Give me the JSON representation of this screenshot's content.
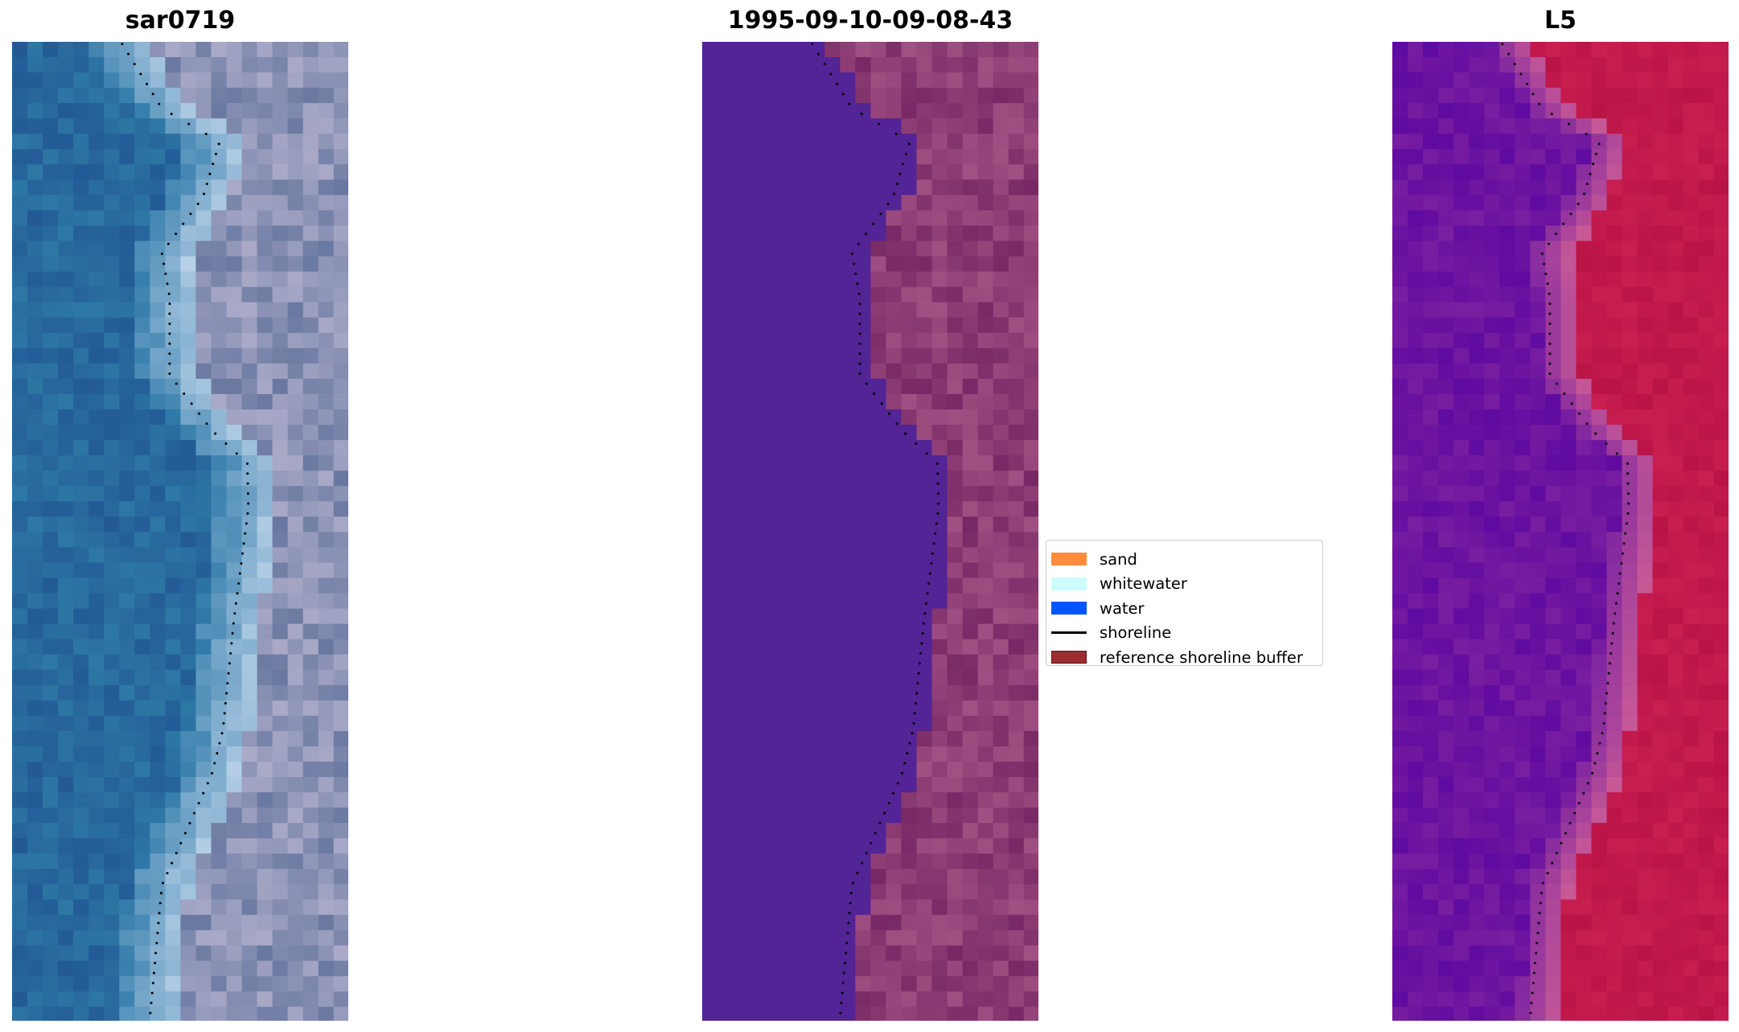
{
  "panels": [
    {
      "title": "sar0719",
      "kind": "rgb"
    },
    {
      "title": "1995-09-10-09-08-43",
      "kind": "classified"
    },
    {
      "title": "L5",
      "kind": "index"
    }
  ],
  "legend": {
    "items": [
      {
        "label": "sand",
        "color": "#ff8c3f",
        "type": "patch"
      },
      {
        "label": "whitewater",
        "color": "#ccfcfc",
        "type": "patch"
      },
      {
        "label": "water",
        "color": "#0055ff",
        "type": "patch"
      },
      {
        "label": "shoreline",
        "color": "#000000",
        "type": "line"
      },
      {
        "label": "reference shoreline buffer",
        "color": "#9b2d32",
        "type": "patch",
        "edge": "#6e0f12"
      }
    ]
  }
}
